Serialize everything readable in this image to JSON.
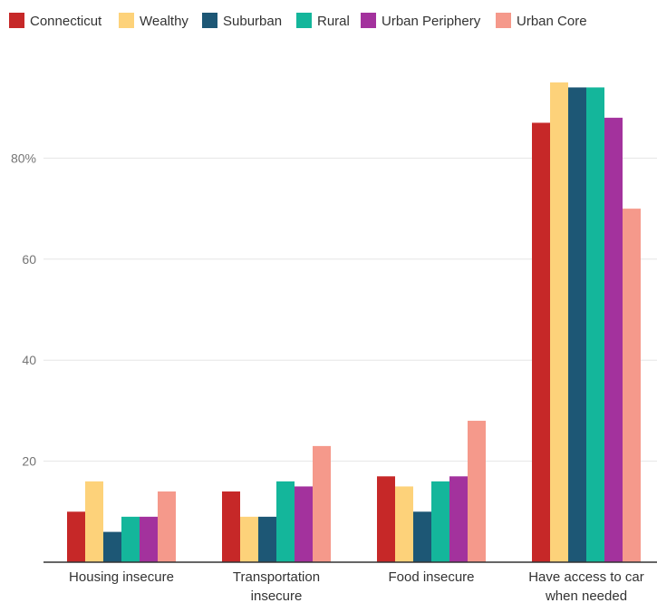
{
  "chart_data": {
    "type": "bar",
    "categories": [
      [
        "Housing insecure"
      ],
      [
        "Transportation",
        "insecure"
      ],
      [
        "Food insecure"
      ],
      [
        "Have access to car",
        "when needed"
      ]
    ],
    "series": [
      {
        "name": "Connecticut",
        "color": "#c62828",
        "values": [
          10,
          14,
          17,
          87
        ]
      },
      {
        "name": "Wealthy",
        "color": "#fdd27a",
        "values": [
          16,
          9,
          15,
          95
        ]
      },
      {
        "name": "Suburban",
        "color": "#1d5775",
        "values": [
          6,
          9,
          10,
          94
        ]
      },
      {
        "name": "Rural",
        "color": "#14b69b",
        "values": [
          9,
          16,
          16,
          94
        ]
      },
      {
        "name": "Urban Periphery",
        "color": "#a3329d",
        "values": [
          9,
          15,
          17,
          88
        ]
      },
      {
        "name": "Urban Core",
        "color": "#f5998b",
        "values": [
          14,
          23,
          28,
          70
        ]
      }
    ],
    "yticks": [
      {
        "value": 20,
        "label": "20"
      },
      {
        "value": 40,
        "label": "40"
      },
      {
        "value": 60,
        "label": "60"
      },
      {
        "value": 80,
        "label": "80%"
      }
    ],
    "ylim": [
      0,
      100
    ],
    "grid": true,
    "legend_position": "top-left",
    "title": "",
    "xlabel": "",
    "ylabel": ""
  }
}
